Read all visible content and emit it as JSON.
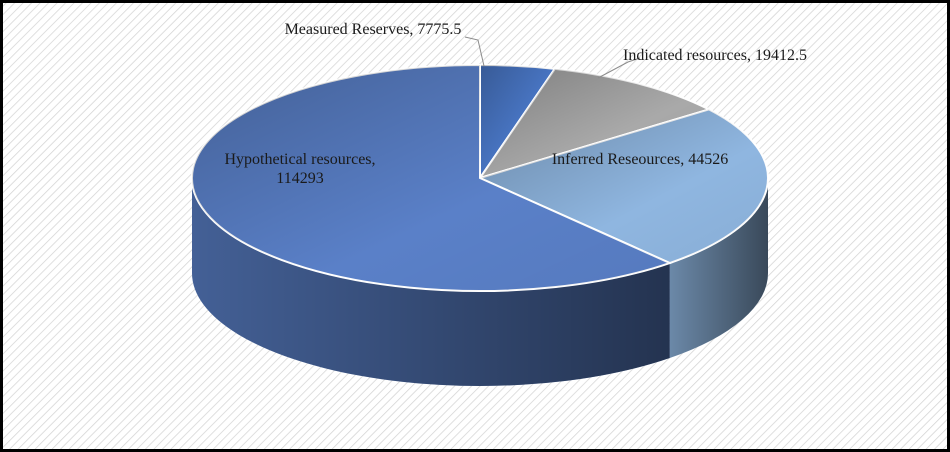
{
  "chart_data": {
    "type": "pie3d",
    "categories": [
      "Measured Reserves",
      "Indicated resources",
      "Inferred Reseources",
      "Hypothetical resources"
    ],
    "values": [
      7775.5,
      19412.5,
      44526,
      114293
    ],
    "colors": [
      "#4a78c8",
      "#a9a9a9",
      "#8fb6e0",
      "#5a80c8"
    ],
    "label_separator": ","
  }
}
